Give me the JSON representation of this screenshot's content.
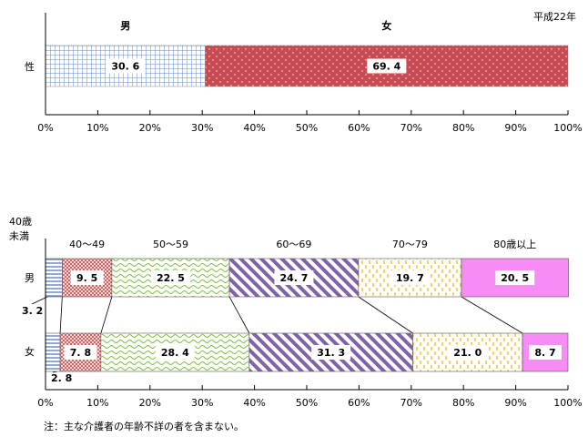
{
  "period_label": "平成22年",
  "footnote": "注：主な介護者の年齢不詳の者を含まない。",
  "colors": {
    "male": "#5b8bd6",
    "female": "#c84a52",
    "age_under40": "#4f6fbf",
    "age_40_49": "#d24a4a",
    "age_50_59": "#7fc241",
    "age_60_69": "#8062a8",
    "age_70_79": "#f2c12e",
    "age_80plus": "#f78cf5"
  },
  "chart_data": [
    {
      "type": "bar",
      "orientation": "horizontal-stacked",
      "categories": [
        "性"
      ],
      "series": [
        {
          "name": "男",
          "values": [
            30.6
          ]
        },
        {
          "name": "女",
          "values": [
            69.4
          ]
        }
      ],
      "xlim": [
        0,
        100
      ],
      "xticks": [
        "0%",
        "10%",
        "20%",
        "30%",
        "40%",
        "50%",
        "60%",
        "70%",
        "80%",
        "90%",
        "100%"
      ]
    },
    {
      "type": "bar",
      "orientation": "horizontal-stacked",
      "categories": [
        "男",
        "女"
      ],
      "series": [
        {
          "name": "40歳未満",
          "values": [
            3.2,
            2.8
          ]
        },
        {
          "name": "40～49",
          "values": [
            9.5,
            7.8
          ]
        },
        {
          "name": "50～59",
          "values": [
            22.5,
            28.4
          ]
        },
        {
          "name": "60～69",
          "values": [
            24.7,
            31.3
          ]
        },
        {
          "name": "70～79",
          "values": [
            19.7,
            21.0
          ]
        },
        {
          "name": "80歳以上",
          "values": [
            20.5,
            8.7
          ]
        }
      ],
      "value_labels": [
        [
          "3.2",
          "9.5",
          "22.5",
          "24.7",
          "19.7",
          "20.5"
        ],
        [
          "2.8",
          "7.8",
          "28.4",
          "31.3",
          "21.0",
          "8.7"
        ]
      ],
      "under40_label_lines": [
        "40歳",
        "未満"
      ],
      "xlim": [
        0,
        100
      ],
      "xticks": [
        "0%",
        "10%",
        "20%",
        "30%",
        "40%",
        "50%",
        "60%",
        "70%",
        "80%",
        "90%",
        "100%"
      ]
    }
  ]
}
